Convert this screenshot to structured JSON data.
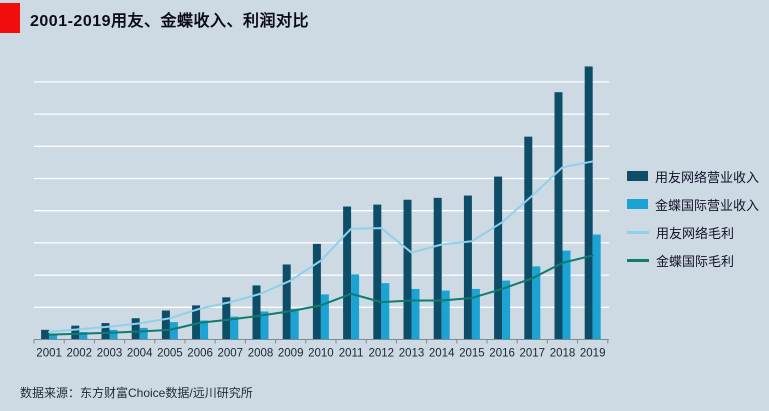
{
  "title": {
    "text": "2001-2019用友、金蝶收入、利润对比"
  },
  "footer": {
    "source": "数据来源：东方财富Choice数据/远川研究所"
  },
  "colors": {
    "background": "#cddae3",
    "title_marker": "#f20d0d",
    "title_text": "#0d0d1a",
    "axis": "#7b8b96",
    "gridline": "#ffffff",
    "tick_label": "#1a2630",
    "legend_text": "#12122a",
    "footer_text": "#1c2b33"
  },
  "legend": {
    "position": "right",
    "items": [
      {
        "label": "用友网络营业收入",
        "swatch": "rect",
        "color": "#0e4d68"
      },
      {
        "label": "金蝶国际营业收入",
        "swatch": "rect",
        "color": "#1aa3d3"
      },
      {
        "label": "用友网络毛利",
        "swatch": "line",
        "color": "#8fd0ec"
      },
      {
        "label": "金蝶国际毛利",
        "swatch": "line",
        "color": "#107c6d"
      }
    ]
  },
  "chart_data": {
    "type": "bar+line combo",
    "title": "2001-2019用友、金蝶收入、利润对比",
    "categories": [
      "2001",
      "2002",
      "2003",
      "2004",
      "2005",
      "2006",
      "2007",
      "2008",
      "2009",
      "2010",
      "2011",
      "2012",
      "2013",
      "2014",
      "2015",
      "2016",
      "2017",
      "2018",
      "2019"
    ],
    "series": [
      {
        "name": "用友网络营业收入",
        "type": "bar",
        "color": "#0e4d68",
        "values": [
          3.0,
          4.3,
          5.1,
          6.6,
          9.0,
          10.6,
          13.1,
          16.8,
          23.3,
          29.7,
          41.3,
          41.9,
          43.4,
          44.0,
          44.7,
          50.6,
          63.0,
          76.8,
          84.8
        ]
      },
      {
        "name": "金蝶国际营业收入",
        "type": "bar",
        "color": "#1aa3d3",
        "values": [
          1.8,
          2.3,
          3.0,
          3.6,
          5.4,
          5.9,
          7.1,
          8.7,
          9.5,
          14.0,
          20.2,
          17.5,
          15.7,
          15.2,
          15.7,
          18.3,
          22.7,
          27.6,
          32.6
        ]
      },
      {
        "name": "用友网络毛利",
        "type": "line",
        "color": "#8fd0ec",
        "values": [
          2.4,
          3.2,
          4.0,
          5.0,
          6.6,
          9.6,
          11.6,
          14.2,
          18.3,
          24.5,
          34.4,
          34.6,
          27.0,
          29.5,
          30.5,
          36.4,
          44.7,
          53.5,
          55.3
        ]
      },
      {
        "name": "金蝶国际毛利",
        "type": "line",
        "color": "#107c6d",
        "values": [
          1.5,
          1.8,
          2.1,
          2.5,
          3.0,
          5.2,
          6.2,
          7.4,
          8.8,
          10.6,
          14.2,
          11.6,
          12.1,
          12.1,
          12.9,
          15.7,
          19.0,
          23.8,
          26.1
        ]
      }
    ],
    "xlabel": "",
    "ylabel": "",
    "ylim": [
      0,
      88
    ],
    "grid_step": 10,
    "grid_max": 80,
    "grid": "horizontal white lines, y axis unlabeled",
    "legend_position": "right"
  }
}
